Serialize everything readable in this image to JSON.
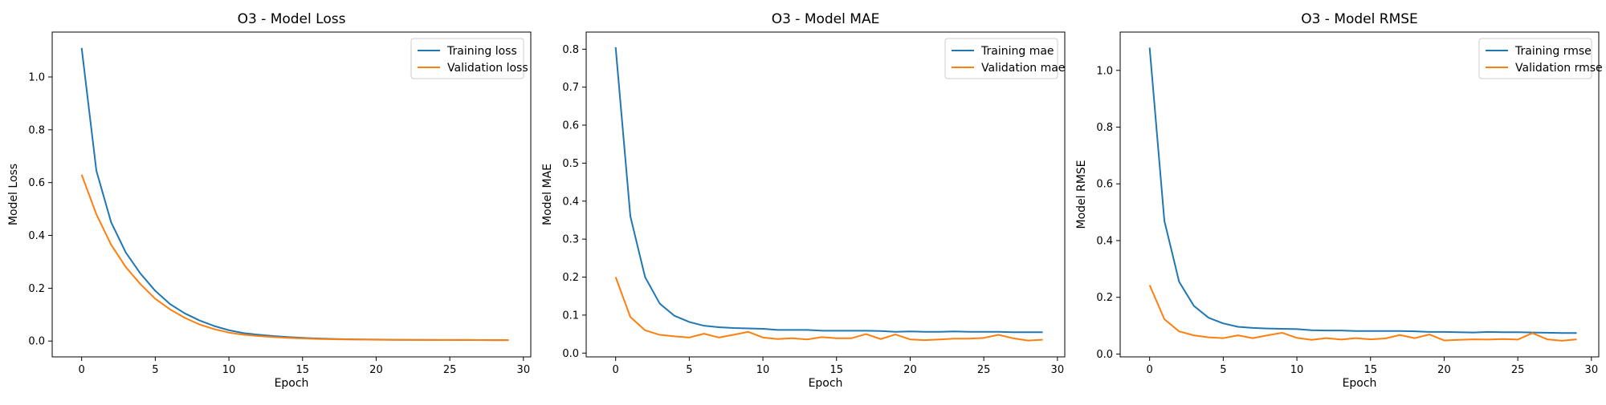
{
  "chart_data": [
    {
      "type": "line",
      "title": "O3 - Model Loss",
      "xlabel": "Epoch",
      "ylabel": "Model Loss",
      "xlim": [
        -2,
        30.5
      ],
      "ylim": [
        -0.06,
        1.17
      ],
      "xticks": [
        0,
        5,
        10,
        15,
        20,
        25,
        30
      ],
      "yticks": [
        0.0,
        0.2,
        0.4,
        0.6,
        0.8,
        1.0
      ],
      "ytick_decimals": 1,
      "legend": "top-right",
      "grid": false,
      "x": [
        0,
        1,
        2,
        3,
        4,
        5,
        6,
        7,
        8,
        9,
        10,
        11,
        12,
        13,
        14,
        15,
        16,
        17,
        18,
        19,
        20,
        21,
        22,
        23,
        24,
        25,
        26,
        27,
        28,
        29
      ],
      "series": [
        {
          "name": "Training loss",
          "color": "#1f77b4",
          "values": [
            1.11,
            0.645,
            0.45,
            0.335,
            0.255,
            0.19,
            0.14,
            0.105,
            0.078,
            0.057,
            0.041,
            0.03,
            0.024,
            0.019,
            0.015,
            0.012,
            0.01,
            0.008,
            0.007,
            0.006,
            0.0055,
            0.005,
            0.0047,
            0.0044,
            0.0042,
            0.004,
            0.0038,
            0.0036,
            0.0035,
            0.0034
          ]
        },
        {
          "name": "Validation loss",
          "color": "#ff7f0e",
          "values": [
            0.63,
            0.48,
            0.365,
            0.28,
            0.215,
            0.16,
            0.12,
            0.088,
            0.063,
            0.045,
            0.032,
            0.024,
            0.019,
            0.015,
            0.012,
            0.01,
            0.008,
            0.007,
            0.006,
            0.0055,
            0.005,
            0.0047,
            0.0044,
            0.0042,
            0.004,
            0.0038,
            0.0045,
            0.0037,
            0.0035,
            0.0034
          ]
        }
      ]
    },
    {
      "type": "line",
      "title": "O3 - Model MAE",
      "xlabel": "Epoch",
      "ylabel": "Model MAE",
      "xlim": [
        -2,
        30.5
      ],
      "ylim": [
        -0.01,
        0.845
      ],
      "xticks": [
        0,
        5,
        10,
        15,
        20,
        25,
        30
      ],
      "yticks": [
        0.0,
        0.1,
        0.2,
        0.3,
        0.4,
        0.5,
        0.6,
        0.7,
        0.8
      ],
      "ytick_decimals": 1,
      "legend": "top-right",
      "grid": false,
      "x": [
        0,
        1,
        2,
        3,
        4,
        5,
        6,
        7,
        8,
        9,
        10,
        11,
        12,
        13,
        14,
        15,
        16,
        17,
        18,
        19,
        20,
        21,
        22,
        23,
        24,
        25,
        26,
        27,
        28,
        29
      ],
      "series": [
        {
          "name": "Training mae",
          "color": "#1f77b4",
          "values": [
            0.805,
            0.36,
            0.2,
            0.13,
            0.098,
            0.082,
            0.072,
            0.068,
            0.066,
            0.065,
            0.064,
            0.061,
            0.061,
            0.061,
            0.059,
            0.059,
            0.059,
            0.059,
            0.058,
            0.056,
            0.057,
            0.056,
            0.056,
            0.057,
            0.056,
            0.056,
            0.056,
            0.055,
            0.055,
            0.055
          ]
        },
        {
          "name": "Validation mae",
          "color": "#ff7f0e",
          "values": [
            0.2,
            0.095,
            0.06,
            0.048,
            0.044,
            0.041,
            0.051,
            0.041,
            0.048,
            0.056,
            0.041,
            0.037,
            0.039,
            0.036,
            0.042,
            0.039,
            0.039,
            0.05,
            0.037,
            0.049,
            0.036,
            0.034,
            0.036,
            0.038,
            0.038,
            0.04,
            0.048,
            0.039,
            0.033,
            0.035
          ]
        }
      ]
    },
    {
      "type": "line",
      "title": "O3 - Model RMSE",
      "xlabel": "Epoch",
      "ylabel": "Model RMSE",
      "xlim": [
        -2,
        30.5
      ],
      "ylim": [
        -0.01,
        1.135
      ],
      "xticks": [
        0,
        5,
        10,
        15,
        20,
        25,
        30
      ],
      "yticks": [
        0.0,
        0.2,
        0.4,
        0.6,
        0.8,
        1.0
      ],
      "ytick_decimals": 1,
      "legend": "top-right",
      "grid": false,
      "x": [
        0,
        1,
        2,
        3,
        4,
        5,
        6,
        7,
        8,
        9,
        10,
        11,
        12,
        13,
        14,
        15,
        16,
        17,
        18,
        19,
        20,
        21,
        22,
        23,
        24,
        25,
        26,
        27,
        28,
        29
      ],
      "series": [
        {
          "name": "Training rmse",
          "color": "#1f77b4",
          "values": [
            1.08,
            0.47,
            0.255,
            0.17,
            0.128,
            0.108,
            0.096,
            0.092,
            0.09,
            0.089,
            0.088,
            0.084,
            0.083,
            0.083,
            0.081,
            0.081,
            0.081,
            0.081,
            0.08,
            0.078,
            0.078,
            0.077,
            0.076,
            0.078,
            0.077,
            0.077,
            0.076,
            0.075,
            0.074,
            0.074
          ]
        },
        {
          "name": "Validation rmse",
          "color": "#ff7f0e",
          "values": [
            0.243,
            0.123,
            0.08,
            0.066,
            0.059,
            0.056,
            0.066,
            0.056,
            0.066,
            0.075,
            0.057,
            0.05,
            0.056,
            0.051,
            0.056,
            0.052,
            0.055,
            0.067,
            0.056,
            0.069,
            0.048,
            0.05,
            0.052,
            0.051,
            0.053,
            0.051,
            0.074,
            0.052,
            0.047,
            0.052
          ]
        }
      ]
    }
  ]
}
